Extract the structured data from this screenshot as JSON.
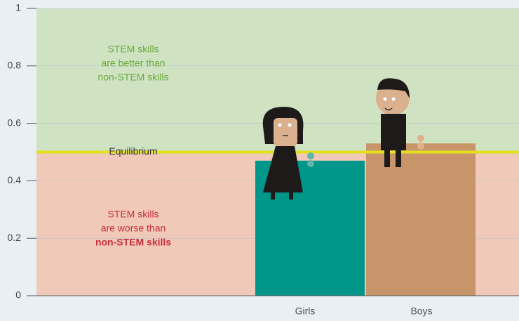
{
  "chart_data": {
    "type": "bar",
    "categories": [
      "Girls",
      "Boys"
    ],
    "values": [
      0.47,
      0.53
    ],
    "colors": [
      "#00968a",
      "#c8956a"
    ],
    "ylim": [
      0,
      1
    ],
    "yticks": [
      0,
      0.2,
      0.4,
      0.6,
      0.8,
      1
    ],
    "grid": true,
    "equilibrium": {
      "label": "Equilibrium",
      "value": 0.5,
      "color": "#e3e01e"
    },
    "upper_region": {
      "color": "#cfe3c3",
      "text_color": "#6aaa3c",
      "lines": [
        "STEM skills",
        "are better than",
        "non-STEM skills"
      ]
    },
    "lower_region": {
      "color": "#f0c9b9",
      "text_color": "#c8303c",
      "lines": [
        "STEM skills",
        "are worse than",
        "non-STEM skills"
      ]
    }
  }
}
